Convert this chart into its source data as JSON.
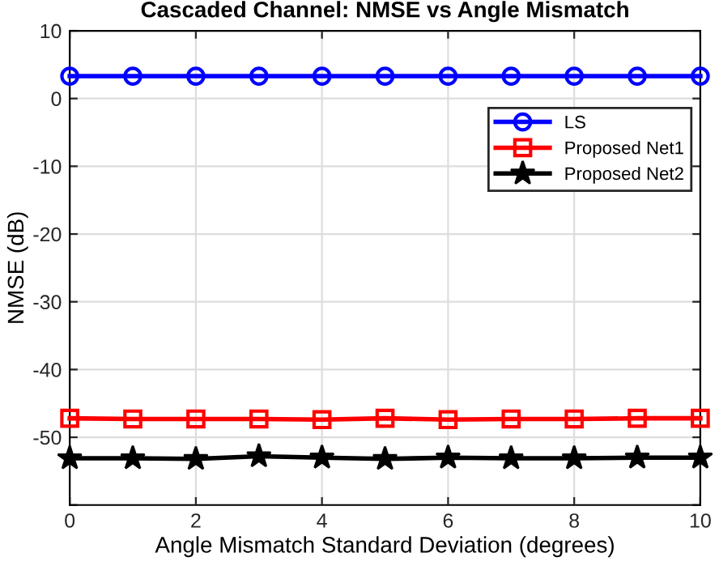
{
  "chart_data": {
    "type": "line",
    "title": "Cascaded Channel: NMSE vs Angle Mismatch",
    "xlabel": "Angle Mismatch Standard Deviation (degrees)",
    "ylabel": "NMSE (dB)",
    "x": [
      0,
      1,
      2,
      3,
      4,
      5,
      6,
      7,
      8,
      9,
      10
    ],
    "series": [
      {
        "name": "LS",
        "color": "#0000ff",
        "marker": "circle",
        "values": [
          3.3,
          3.3,
          3.3,
          3.3,
          3.3,
          3.3,
          3.3,
          3.3,
          3.3,
          3.3,
          3.3
        ]
      },
      {
        "name": "Proposed Net1",
        "color": "#ff0000",
        "marker": "square",
        "values": [
          -47.2,
          -47.3,
          -47.3,
          -47.3,
          -47.4,
          -47.2,
          -47.4,
          -47.3,
          -47.3,
          -47.2,
          -47.2
        ]
      },
      {
        "name": "Proposed Net2",
        "color": "#000000",
        "marker": "star",
        "values": [
          -53.1,
          -53.1,
          -53.2,
          -52.8,
          -53.0,
          -53.2,
          -53.0,
          -53.1,
          -53.1,
          -53.0,
          -53.0
        ]
      }
    ],
    "xlim": [
      0,
      10
    ],
    "xticks": [
      0,
      2,
      4,
      6,
      8,
      10
    ],
    "ylim": [
      -60,
      10
    ],
    "yticks": [
      {
        "value": -60,
        "label": null
      },
      -50,
      -40,
      -30,
      -20,
      -10,
      0,
      10
    ],
    "grid": true,
    "legend": "right",
    "line_style": "solid"
  }
}
